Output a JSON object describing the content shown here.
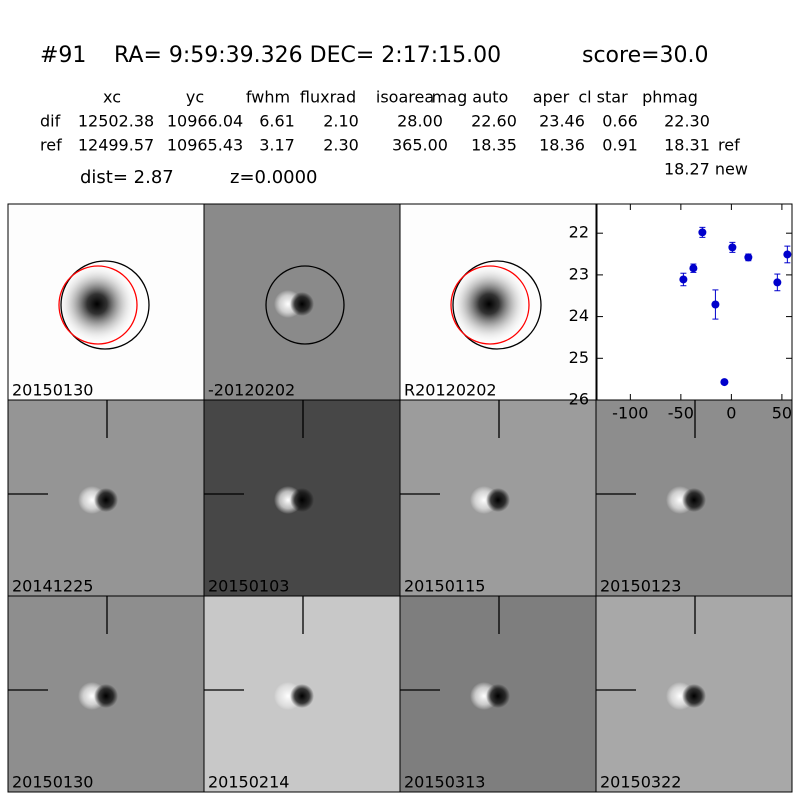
{
  "header": {
    "id": "#91",
    "coords": "RA= 9:59:39.326 DEC= 2:17:15.00",
    "score": "score=30.0"
  },
  "table": {
    "columns": [
      "xc",
      "yc",
      "fwhm",
      "fluxrad",
      "isoarea",
      "mag auto",
      "aper",
      "cl star",
      "phmag"
    ],
    "rows": [
      {
        "label": "dif",
        "values": [
          "12502.38",
          "10966.04",
          "6.61",
          "2.10",
          "28.00",
          "22.60",
          "23.46",
          "0.66",
          "22.30"
        ]
      },
      {
        "label": "ref",
        "values": [
          "12499.57",
          "10965.43",
          "3.17",
          "2.30",
          "365.00",
          "18.35",
          "18.36",
          "0.91",
          "18.31"
        ],
        "suffix": "ref"
      }
    ],
    "extra": "18.27 new",
    "dist": "dist=  2.87",
    "z": "z=0.0000"
  },
  "panels": [
    {
      "label": "20150130",
      "color": "#000000"
    },
    {
      "label": "-20120202",
      "color": "#000000"
    },
    {
      "label": "R20120202",
      "color": "#000000"
    },
    {
      "label": "20141225",
      "color": "#000000"
    },
    {
      "label": "20150103",
      "color": "#000000"
    },
    {
      "label": "20150115",
      "color": "#000000"
    },
    {
      "label": "20150123",
      "color": "#000000"
    },
    {
      "label": "20150130",
      "color": "#ff0000"
    },
    {
      "label": "20150214",
      "color": "#000000"
    },
    {
      "label": "20150313",
      "color": "#000000"
    },
    {
      "label": "20150322",
      "color": "#000000"
    }
  ],
  "chart_data": {
    "type": "scatter",
    "series": [
      {
        "color": "#0000cc",
        "x": [
          -47.5,
          -37.6,
          -28.7,
          -15.8,
          -6.9,
          1,
          16.8,
          45.5,
          55.4
        ],
        "values": [
          23.11,
          22.84,
          21.98,
          23.71,
          25.57,
          22.34,
          22.58,
          23.18,
          22.51
        ],
        "errors": [
          0.15,
          0.1,
          0.12,
          0.35,
          0.05,
          0.12,
          0.08,
          0.2,
          0.2
        ]
      }
    ],
    "xlim": [
      -133,
      60
    ],
    "xticks": [
      -100,
      -50,
      0,
      50
    ],
    "ylim": [
      26,
      21.3
    ],
    "yticks": [
      22,
      23,
      24,
      25,
      26
    ]
  }
}
